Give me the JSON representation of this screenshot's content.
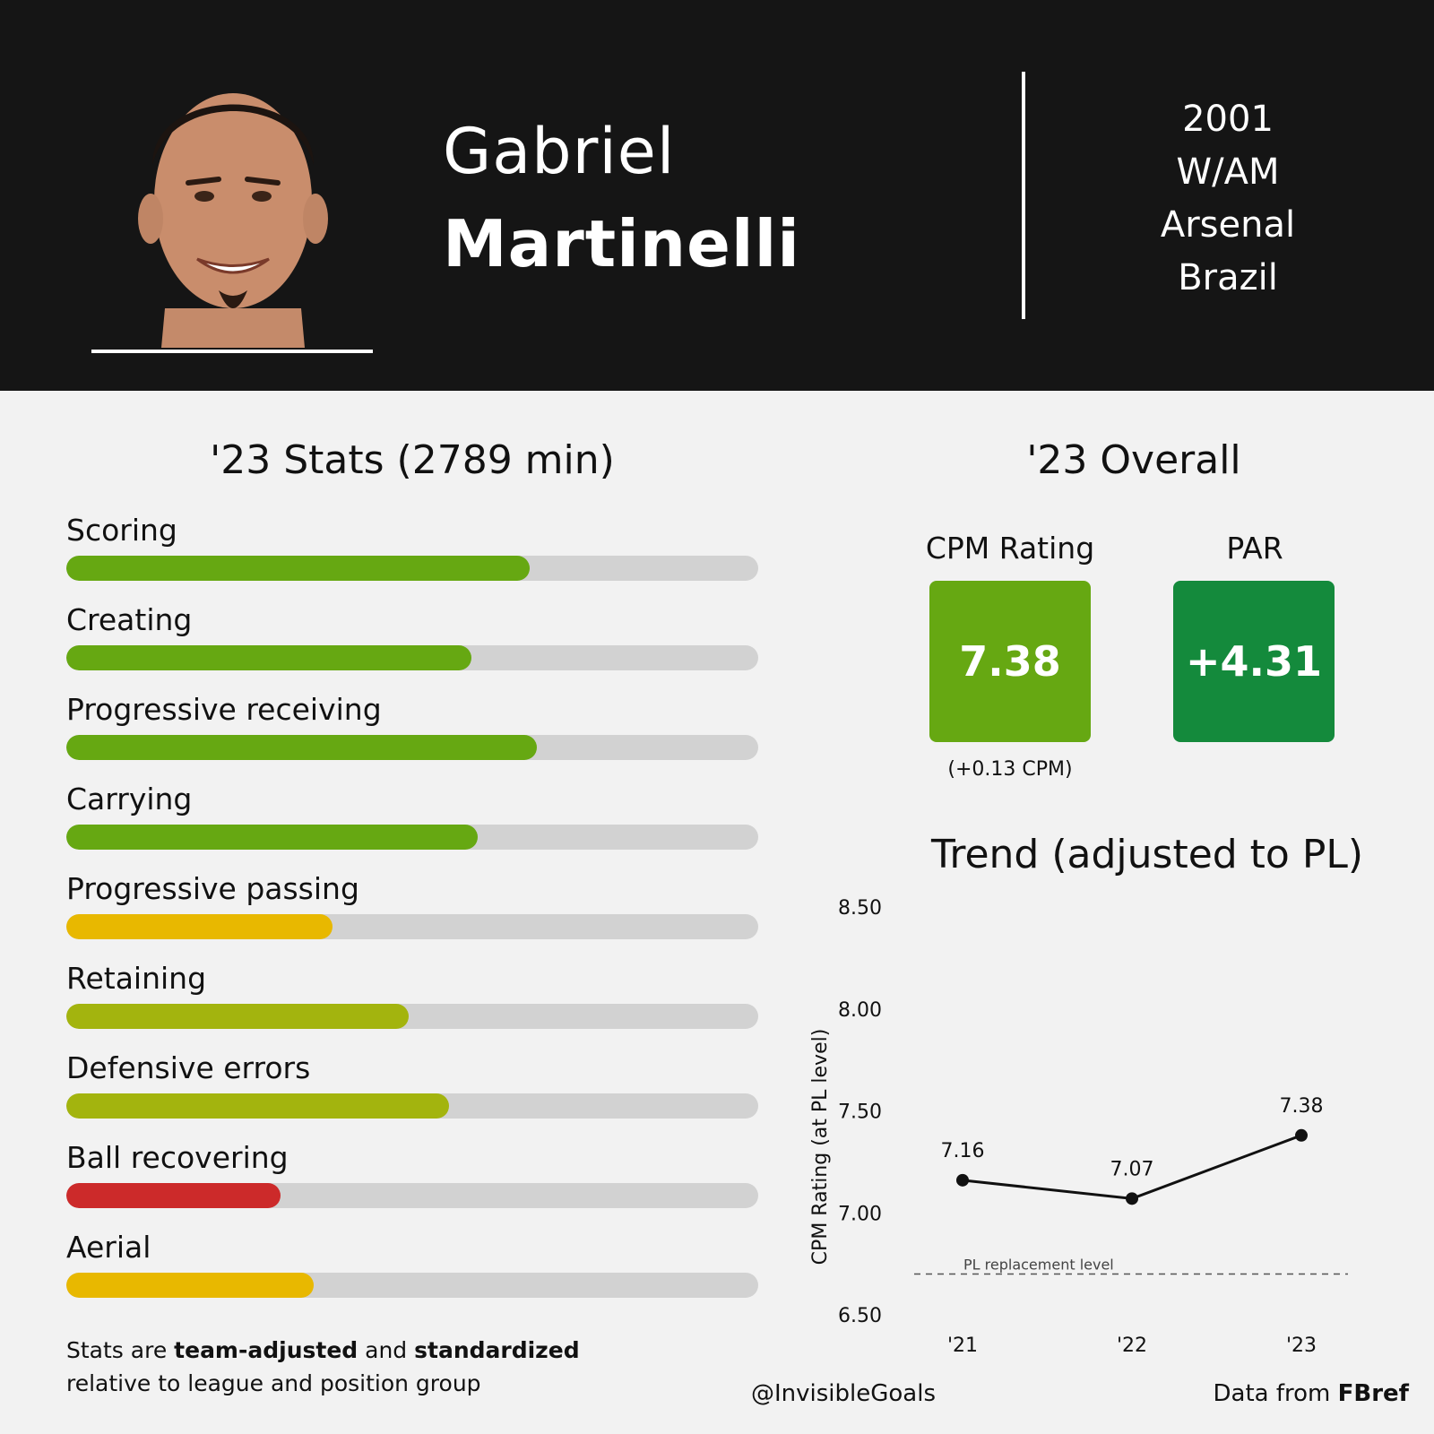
{
  "player": {
    "first_name": "Gabriel",
    "last_name": "Martinelli",
    "birth_year": "2001",
    "position": "W/AM",
    "club": "Arsenal",
    "nation": "Brazil"
  },
  "stats": {
    "title": "'23 Stats (2789 min)",
    "items": [
      {
        "label": "Scoring",
        "value": 0.67,
        "color": "#66a812"
      },
      {
        "label": "Creating",
        "value": 0.585,
        "color": "#66a812"
      },
      {
        "label": "Progressive receiving",
        "value": 0.68,
        "color": "#66a812"
      },
      {
        "label": "Carrying",
        "value": 0.595,
        "color": "#66a812"
      },
      {
        "label": "Progressive passing",
        "value": 0.385,
        "color": "#e8b800"
      },
      {
        "label": "Retaining",
        "value": 0.495,
        "color": "#a3b40e"
      },
      {
        "label": "Defensive errors",
        "value": 0.553,
        "color": "#a3b40e"
      },
      {
        "label": "Ball recovering",
        "value": 0.31,
        "color": "#cc2a2a"
      },
      {
        "label": "Aerial",
        "value": 0.358,
        "color": "#e8b800"
      }
    ],
    "footnote": {
      "part1": "Stats are ",
      "bold1": "team-adjusted",
      "part2": " and ",
      "bold2": "standardized",
      "line2": "relative to league and position group"
    }
  },
  "overall": {
    "title": "'23 Overall",
    "cpm_label": "CPM Rating",
    "cpm_value": "7.38",
    "cpm_delta": "(+0.13 CPM)",
    "par_label": "PAR",
    "par_value": "+4.31",
    "cpm_color": "#66a812",
    "par_color": "#148a3c"
  },
  "chart_data": {
    "type": "line",
    "title": "Trend (adjusted to PL)",
    "ylabel": "CPM Rating (at PL level)",
    "x": [
      "'21",
      "'22",
      "'23"
    ],
    "series": [
      {
        "values": [
          7.16,
          7.07,
          7.38
        ]
      }
    ],
    "data_labels": [
      "7.16",
      "7.07",
      "7.38"
    ],
    "ylim": [
      6.5,
      8.5
    ],
    "yticks": [
      "6.50",
      "7.00",
      "7.50",
      "8.00",
      "8.50"
    ],
    "reference_line": {
      "label": "PL replacement level",
      "value": 6.7
    },
    "grid": false
  },
  "credits": {
    "handle": "@InvisibleGoals",
    "source_prefix": "Data from ",
    "source_name": "FBref"
  }
}
